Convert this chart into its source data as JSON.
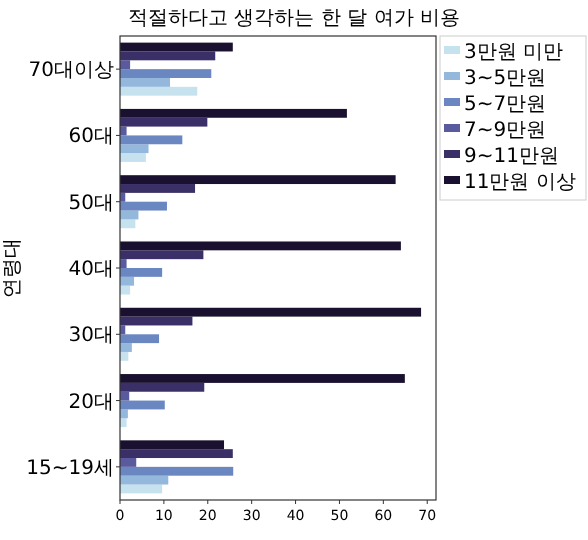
{
  "chart_data": {
    "type": "bar",
    "orientation": "horizontal",
    "title": "적절하다고 생각하는 한 달 여가 비용",
    "ylabel": "연령대",
    "categories": [
      "70대이상",
      "60대",
      "50대",
      "40대",
      "30대",
      "20대",
      "15~19세"
    ],
    "series": [
      {
        "name": "3만원 미만",
        "color": "#c6e2ef",
        "values": [
          17.6,
          5.9,
          3.5,
          2.3,
          1.9,
          1.5,
          9.6
        ]
      },
      {
        "name": "3~5만원",
        "color": "#94b8dc",
        "values": [
          11.4,
          6.5,
          4.2,
          3.2,
          2.7,
          1.8,
          11.0
        ]
      },
      {
        "name": "5~7만원",
        "color": "#6a87c2",
        "values": [
          20.8,
          14.2,
          10.7,
          9.6,
          8.9,
          10.2,
          25.8
        ]
      },
      {
        "name": "7~9만원",
        "color": "#5a5a9e",
        "values": [
          2.3,
          1.5,
          1.2,
          1.5,
          1.2,
          2.1,
          3.7
        ]
      },
      {
        "name": "9~11만원",
        "color": "#3a2f66",
        "values": [
          21.7,
          19.9,
          17.1,
          19.0,
          16.5,
          19.2,
          25.7
        ]
      },
      {
        "name": "11만원 이상",
        "color": "#1a1030",
        "values": [
          25.7,
          51.7,
          62.8,
          64.0,
          68.6,
          64.9,
          23.7
        ]
      }
    ],
    "xlim": [
      0,
      72
    ],
    "xticks": [
      0,
      10,
      20,
      30,
      40,
      50,
      60,
      70
    ],
    "legend": "top right"
  }
}
